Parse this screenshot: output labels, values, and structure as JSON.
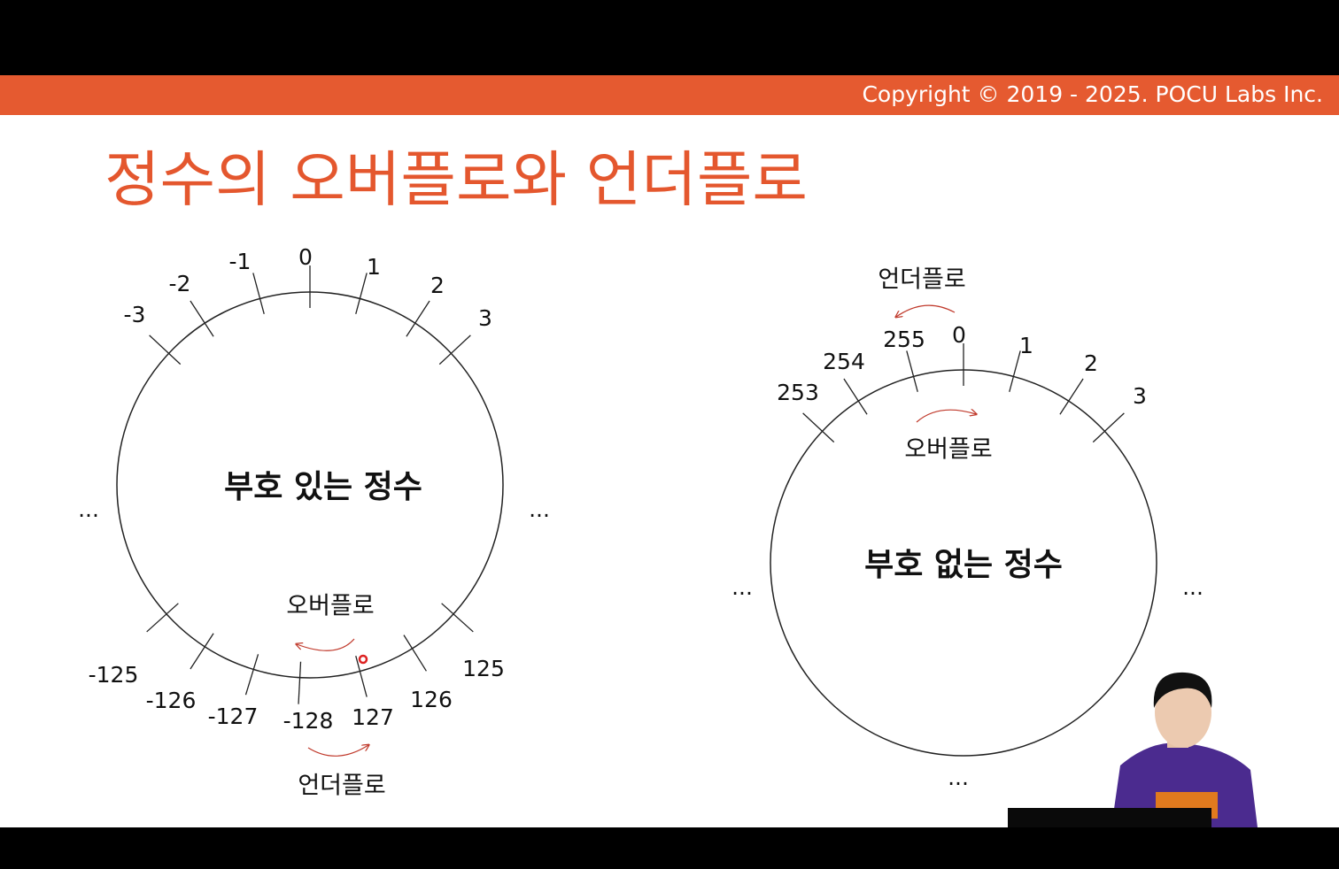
{
  "header": {
    "copyright": "Copyright © 2019 - 2025. POCU Labs Inc."
  },
  "title": "정수의 오버플로와 언더플로",
  "signed": {
    "label": "부호 있는 정수",
    "ticks": [
      "-3",
      "-2",
      "-1",
      "0",
      "1",
      "2",
      "3",
      "-125",
      "-126",
      "-127",
      "-128",
      "127",
      "126",
      "125"
    ],
    "overflow": "오버플로",
    "underflow": "언더플로",
    "ellipses": [
      "...",
      "..."
    ]
  },
  "unsigned": {
    "label": "부호 없는 정수",
    "ticks": [
      "253",
      "254",
      "255",
      "0",
      "1",
      "2",
      "3"
    ],
    "underflow": "언더플로",
    "overflow": "오버플로",
    "ellipses": [
      "...",
      "...",
      "..."
    ]
  }
}
